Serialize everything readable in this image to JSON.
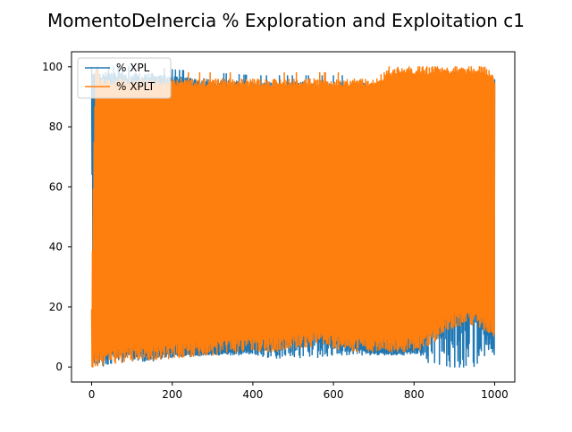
{
  "chart_data": {
    "type": "line",
    "title": "MomentoDeInercia % Exploration and Exploitation c1",
    "xlabel": "",
    "ylabel": "",
    "xlim": [
      -50,
      1050
    ],
    "ylim": [
      -5,
      105
    ],
    "xticks": [
      0,
      200,
      400,
      600,
      800,
      1000
    ],
    "yticks": [
      0,
      20,
      40,
      60,
      80,
      100
    ],
    "xtick_labels": [
      "0",
      "200",
      "400",
      "600",
      "800",
      "1000"
    ],
    "ytick_labels": [
      "0",
      "20",
      "40",
      "60",
      "80",
      "100"
    ],
    "legend_position": "upper-left",
    "series": [
      {
        "name": "% XPL",
        "color": "#1f77b4",
        "x": [
          0,
          5,
          10,
          20,
          50,
          100,
          150,
          200,
          300,
          400,
          450,
          500,
          550,
          600,
          650,
          700,
          750,
          800,
          820,
          850,
          880,
          900,
          920,
          950,
          980,
          1000
        ],
        "low": [
          79,
          0,
          0,
          0,
          1,
          2,
          2,
          3,
          4,
          4,
          3,
          3,
          3,
          4,
          4,
          4,
          4,
          4,
          3,
          0,
          0,
          0,
          0,
          0,
          3,
          4
        ],
        "high": [
          100,
          100,
          99,
          98,
          98,
          98,
          98,
          97,
          96,
          95,
          95,
          95,
          95,
          95,
          95,
          94,
          96,
          97,
          96,
          95,
          95,
          96,
          95,
          95,
          95,
          96
        ],
        "floor_band": [
          5,
          5,
          5,
          5,
          5,
          5,
          5,
          5,
          5,
          6,
          7,
          9,
          11,
          9,
          7,
          5,
          5,
          6,
          8,
          14,
          18,
          19,
          20,
          20,
          12,
          12
        ]
      },
      {
        "name": "% XPLT",
        "color": "#ff7f0e",
        "x": [
          0,
          5,
          10,
          20,
          50,
          100,
          150,
          200,
          300,
          400,
          450,
          500,
          550,
          600,
          650,
          700,
          750,
          800,
          820,
          850,
          880,
          900,
          920,
          950,
          980,
          1000
        ],
        "low": [
          0,
          0,
          0,
          0,
          1,
          2,
          2,
          3,
          4,
          5,
          5,
          6,
          7,
          6,
          5,
          5,
          5,
          5,
          6,
          8,
          12,
          13,
          14,
          14,
          12,
          10
        ],
        "high": [
          21,
          72,
          100,
          96,
          96,
          96,
          96,
          96,
          96,
          96,
          96,
          96,
          96,
          96,
          96,
          96,
          100,
          100,
          100,
          100,
          100,
          100,
          100,
          100,
          100,
          96
        ]
      }
    ]
  }
}
